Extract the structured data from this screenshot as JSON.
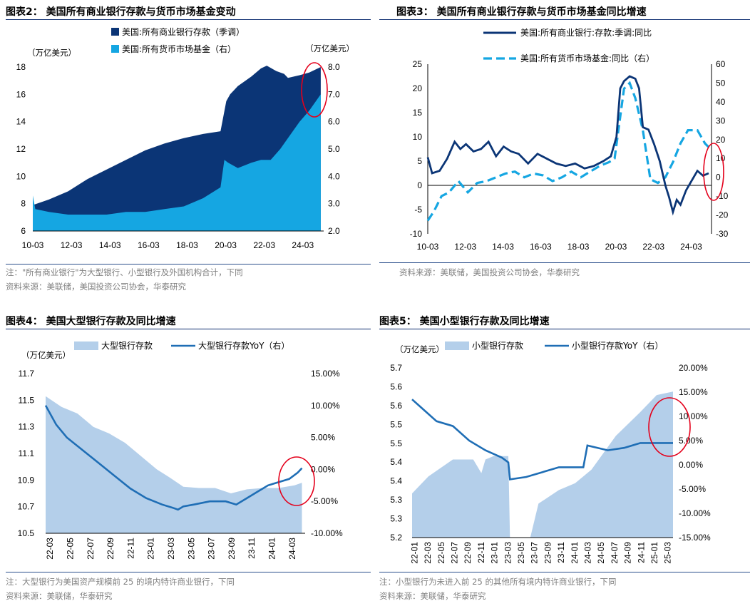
{
  "colors": {
    "navy": "#0b3576",
    "light": "#15a6e2",
    "pale": "#b4cfea",
    "blue": "#1f6eb5",
    "rule": "#0a2a6e",
    "red": "#e4001b"
  },
  "chart_data": [
    {
      "id": "chart2",
      "type": "area",
      "title": "图表2：  美国所有商业银行存款与货币市场基金变动",
      "legend": [
        "美国:所有商业银行存款（季调）",
        "美国:所有货币市场基金（右）"
      ],
      "ylabel": "（万亿美元）",
      "y2label": "（万亿美元）",
      "ylim": [
        6,
        18
      ],
      "y2lim": [
        2.0,
        8.0
      ],
      "yticks": [
        "6",
        "8",
        "10",
        "12",
        "14",
        "16",
        "18"
      ],
      "y2ticks": [
        "2.0",
        "3.0",
        "4.0",
        "5.0",
        "6.0",
        "7.0",
        "8.0"
      ],
      "xlim": [
        2010.17,
        2025.25
      ],
      "xticks": [
        "10-03",
        "12-03",
        "14-03",
        "16-03",
        "18-03",
        "20-03",
        "22-03",
        "24-03"
      ],
      "series": [
        {
          "name": "美国:所有商业银行存款（季调）",
          "axis": "left",
          "x": [
            2010.17,
            2011.0,
            2012.0,
            2013.0,
            2014.0,
            2015.0,
            2016.0,
            2017.0,
            2018.0,
            2019.0,
            2019.9,
            2020.2,
            2020.4,
            2020.8,
            2021.5,
            2022.0,
            2022.3,
            2022.8,
            2023.2,
            2023.4,
            2024.0,
            2024.5,
            2025.1
          ],
          "values": [
            7.9,
            8.3,
            8.9,
            9.8,
            10.5,
            11.2,
            11.9,
            12.4,
            12.8,
            13.1,
            13.3,
            15.5,
            16.0,
            16.6,
            17.3,
            17.9,
            18.1,
            17.7,
            17.5,
            17.2,
            17.4,
            17.6,
            18.0
          ]
        },
        {
          "name": "美国:所有货币市场基金（右）",
          "axis": "right",
          "x": [
            2010.17,
            2010.3,
            2011.0,
            2012.0,
            2013.0,
            2014.0,
            2015.0,
            2016.0,
            2017.0,
            2018.0,
            2019.0,
            2019.9,
            2020.1,
            2020.3,
            2020.8,
            2021.5,
            2022.0,
            2022.5,
            2023.0,
            2023.5,
            2024.0,
            2024.5,
            2025.1
          ],
          "values": [
            3.3,
            2.8,
            2.7,
            2.6,
            2.6,
            2.6,
            2.7,
            2.7,
            2.8,
            2.9,
            3.2,
            3.6,
            4.6,
            4.5,
            4.3,
            4.5,
            4.6,
            4.6,
            5.0,
            5.5,
            6.0,
            6.4,
            7.0
          ]
        }
      ],
      "annotation": "red ellipse at latest values"
    },
    {
      "id": "chart3",
      "type": "line",
      "title": "图表3：  美国所有商业银行存款与货币市场基金同比增速",
      "legend": [
        "美国:所有商业银行:存款:季调:同比",
        "美国:所有货币市场基金:同比（右）"
      ],
      "ylim": [
        -10,
        25
      ],
      "y2lim": [
        -30,
        60
      ],
      "yticks": [
        "-10",
        "-5",
        "0",
        "5",
        "10",
        "15",
        "20",
        "25"
      ],
      "y2ticks": [
        "-30",
        "-20",
        "-10",
        "0",
        "10",
        "20",
        "30",
        "40",
        "50",
        "60"
      ],
      "xlim": [
        2010.17,
        2025.25
      ],
      "xticks": [
        "10-03",
        "12-03",
        "14-03",
        "16-03",
        "18-03",
        "20-03",
        "22-03",
        "24-03"
      ],
      "series": [
        {
          "name": "美国:所有商业银行:存款:季调:同比",
          "axis": "left",
          "style": "solid",
          "x": [
            2010.17,
            2010.4,
            2010.8,
            2011.2,
            2011.6,
            2011.9,
            2012.2,
            2012.6,
            2013.0,
            2013.4,
            2013.8,
            2014.2,
            2014.6,
            2015.0,
            2015.5,
            2016.0,
            2016.5,
            2017.0,
            2017.5,
            2018.0,
            2018.5,
            2019.0,
            2019.5,
            2019.9,
            2020.2,
            2020.4,
            2020.6,
            2020.9,
            2021.2,
            2021.4,
            2021.6,
            2021.9,
            2022.2,
            2022.5,
            2022.8,
            2023.0,
            2023.2,
            2023.4,
            2023.6,
            2023.9,
            2024.2,
            2024.5,
            2024.8,
            2025.1
          ],
          "values": [
            5.8,
            2.5,
            3.0,
            5.5,
            9.0,
            7.5,
            8.5,
            7.0,
            7.5,
            9.0,
            6.0,
            8.0,
            7.0,
            6.5,
            4.5,
            6.5,
            5.5,
            4.5,
            4.0,
            4.5,
            3.5,
            4.0,
            5.0,
            6.0,
            10.0,
            20.0,
            21.5,
            22.5,
            22.0,
            20.0,
            12.0,
            11.5,
            8.5,
            5.0,
            0.0,
            -2.5,
            -5.5,
            -3.0,
            -4.0,
            -1.0,
            1.0,
            3.0,
            2.0,
            2.5
          ]
        },
        {
          "name": "美国:所有货币市场基金:同比（右）",
          "axis": "right",
          "style": "dashed",
          "x": [
            2010.17,
            2010.5,
            2010.9,
            2011.3,
            2011.8,
            2012.3,
            2012.8,
            2013.3,
            2013.8,
            2014.3,
            2014.8,
            2015.3,
            2015.8,
            2016.3,
            2016.8,
            2017.3,
            2017.8,
            2018.3,
            2018.8,
            2019.3,
            2019.8,
            2020.1,
            2020.3,
            2020.6,
            2020.9,
            2021.2,
            2021.6,
            2022.0,
            2022.4,
            2022.8,
            2023.2,
            2023.6,
            2024.0,
            2024.5,
            2024.9,
            2025.1
          ],
          "values": [
            -23,
            -18,
            -10,
            -8,
            -2,
            -8,
            -3,
            -2,
            0,
            2,
            3,
            0,
            2,
            1,
            -2,
            0,
            3,
            0,
            3,
            6,
            8,
            10,
            25,
            47,
            50,
            42,
            25,
            -1,
            -3,
            0,
            8,
            18,
            25,
            25,
            18,
            16
          ]
        }
      ],
      "annotation": "red ellipse at latest values"
    },
    {
      "id": "chart4",
      "type": "area",
      "title": "图表4：  美国大型银行存款及同比增速",
      "legend": [
        "大型银行存款",
        "大型银行存款YoY（右）"
      ],
      "ylabel": "（万亿美元）",
      "ylim": [
        10.5,
        11.7
      ],
      "y2lim": [
        -10,
        15
      ],
      "yticks": [
        "10.5",
        "10.7",
        "10.9",
        "11.1",
        "11.3",
        "11.5",
        "11.7"
      ],
      "y2ticks": [
        "-10.00%",
        "-5.00%",
        "0.00%",
        "5.00%",
        "10.00%",
        "15.00%"
      ],
      "xlim": [
        2022.0,
        2024.45
      ],
      "xticks": [
        "22-03",
        "22-05",
        "22-07",
        "22-09",
        "22-11",
        "23-01",
        "23-03",
        "23-05",
        "23-07",
        "23-09",
        "23-11",
        "24-01",
        "24-03"
      ],
      "series": [
        {
          "name": "大型银行存款",
          "axis": "left",
          "x": [
            2022.0,
            2022.15,
            2022.3,
            2022.45,
            2022.6,
            2022.75,
            2022.9,
            2023.05,
            2023.17,
            2023.3,
            2023.45,
            2023.6,
            2023.75,
            2023.9,
            2024.05,
            2024.2,
            2024.35,
            2024.42
          ],
          "values": [
            11.53,
            11.45,
            11.4,
            11.3,
            11.25,
            11.18,
            11.08,
            10.98,
            10.92,
            10.85,
            10.84,
            10.84,
            10.8,
            10.83,
            10.84,
            10.84,
            10.86,
            10.88
          ]
        },
        {
          "name": "大型银行存款YoY（右）",
          "axis": "right",
          "x": [
            2022.0,
            2022.1,
            2022.2,
            2022.35,
            2022.5,
            2022.65,
            2022.8,
            2022.95,
            2023.1,
            2023.2,
            2023.25,
            2023.3,
            2023.4,
            2023.55,
            2023.7,
            2023.8,
            2023.9,
            2024.0,
            2024.1,
            2024.2,
            2024.3,
            2024.38,
            2024.42
          ],
          "values": [
            10.0,
            7.0,
            5.0,
            3.0,
            1.0,
            -1.0,
            -3.0,
            -4.5,
            -5.5,
            -6.0,
            -6.3,
            -5.8,
            -5.5,
            -5.0,
            -5.0,
            -5.5,
            -4.5,
            -3.5,
            -2.5,
            -2.0,
            -1.5,
            -0.5,
            0.2
          ]
        }
      ],
      "annotation": "red ellipse at latest values"
    },
    {
      "id": "chart5",
      "type": "area",
      "title": "图表5：  美国小型银行存款及同比增速",
      "legend": [
        "小型银行存款",
        "小型银行存款YoY（右）"
      ],
      "ylabel": "（万亿美元）",
      "ylim": [
        5.2,
        5.7
      ],
      "y2lim": [
        -15,
        20
      ],
      "yticks": [
        "5.2",
        "5.3",
        "5.3",
        "5.4",
        "5.4",
        "5.5",
        "5.5",
        "5.6",
        "5.6",
        "5.7"
      ],
      "y2ticks": [
        "-15.00%",
        "-10.00%",
        "-5.00%",
        "0.00%",
        "5.00%",
        "10.00%",
        "15.00%",
        "20.00%"
      ],
      "xlim": [
        2022.0,
        2025.2
      ],
      "xticks": [
        "22-01",
        "22-03",
        "22-05",
        "22-07",
        "22-09",
        "22-11",
        "23-01",
        "23-03",
        "23-05",
        "23-07",
        "23-09",
        "23-11",
        "24-01",
        "24-03",
        "24-05",
        "24-07",
        "24-09",
        "24-11",
        "25-01",
        "25-03"
      ],
      "series": [
        {
          "name": "小型银行存款",
          "axis": "left",
          "x": [
            2022.0,
            2022.2,
            2022.5,
            2022.75,
            2022.85,
            2022.9,
            2023.0,
            2023.18,
            2023.2,
            2023.45,
            2023.55,
            2023.8,
            2024.0,
            2024.2,
            2024.5,
            2024.8,
            2025.0,
            2025.2
          ],
          "values": [
            5.33,
            5.38,
            5.43,
            5.43,
            5.39,
            5.43,
            5.44,
            5.44,
            5.2,
            5.2,
            5.3,
            5.34,
            5.36,
            5.4,
            5.5,
            5.57,
            5.62,
            5.63
          ]
        },
        {
          "name": "小型银行存款YoY（右）",
          "axis": "right",
          "x": [
            2022.0,
            2022.1,
            2022.3,
            2022.5,
            2022.7,
            2022.9,
            2023.1,
            2023.18,
            2023.2,
            2023.4,
            2023.6,
            2023.8,
            2024.0,
            2024.1,
            2024.15,
            2024.4,
            2024.6,
            2024.8,
            2025.0,
            2025.2
          ],
          "values": [
            13.5,
            12.0,
            9.0,
            8.0,
            5.0,
            3.0,
            1.5,
            0.5,
            -3.0,
            -2.5,
            -1.5,
            -0.5,
            -0.5,
            -0.5,
            4.0,
            3.0,
            3.5,
            4.5,
            4.5,
            4.5
          ]
        }
      ],
      "annotation": "red ellipse at latest values"
    }
  ],
  "notes": {
    "chart2_note": "注：\"所有商业银行\"为大型银行、小型银行及外国机构合计，下同",
    "chart2_source": "资料来源：美联储，美国投资公司协会，华泰研究",
    "chart3_source": "资料来源：美联储，美国投资公司协会，华泰研究",
    "chart4_note": "注：大型银行为美国资产规模前 25 的境内特许商业银行，下同",
    "chart4_source": "资料来源：美联储，华泰研究",
    "chart5_note": "注：小型银行为未进入前 25 的其他所有境内特许商业银行，下同",
    "chart5_source": "资料来源：美联储，华泰研究"
  }
}
